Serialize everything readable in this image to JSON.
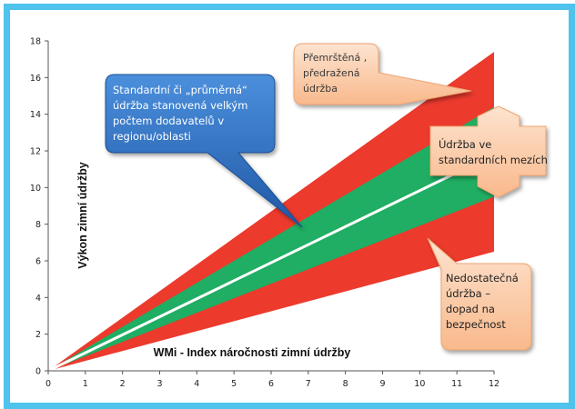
{
  "chart_data": {
    "type": "area",
    "xlabel": "WMi - Index náročnosti zimní údržby",
    "ylabel": "Výkon zimní údržby",
    "xlim": [
      0,
      12
    ],
    "ylim": [
      0,
      18
    ],
    "x_ticks": [
      "0",
      "1",
      "2",
      "3",
      "4",
      "5",
      "6",
      "7",
      "8",
      "9",
      "10",
      "11",
      "12"
    ],
    "y_ticks": [
      "0",
      "2",
      "4",
      "6",
      "8",
      "10",
      "12",
      "14",
      "16",
      "18"
    ],
    "grid": false,
    "bands": [
      {
        "role": "outer",
        "color": "#ec3a2d",
        "lower": [
          [
            0,
            0
          ],
          [
            12,
            6.5
          ]
        ],
        "upper": [
          [
            0,
            0
          ],
          [
            12,
            17.4
          ]
        ]
      },
      {
        "role": "standard",
        "color": "#1fae63",
        "lower": [
          [
            0,
            0
          ],
          [
            12,
            9.5
          ]
        ],
        "upper": [
          [
            0,
            0
          ],
          [
            12,
            14.4
          ]
        ]
      }
    ],
    "series": [
      {
        "role": "average",
        "color": "#ffffff",
        "x": [
          0,
          12
        ],
        "y": [
          0,
          11.8
        ]
      }
    ],
    "annotations": [
      {
        "text": "Standardní či „průměrná“ údržba stanovená  velkým počtem dodavatelů v regionu/oblasti",
        "style": "blue-callout"
      },
      {
        "text": "Přemrštěná , předražená údržba",
        "style": "orange-callout"
      },
      {
        "text": "Údržba ve standardních mezích",
        "style": "orange-double-arrow"
      },
      {
        "text": "Nedostatečná údržba – dopad na bezpečnost",
        "style": "orange-callout"
      }
    ],
    "colors": {
      "frame": "#4fc3ec",
      "red_zone": "#ec3a2d",
      "green_zone": "#1fae63",
      "average_line": "#ffffff",
      "blue_callout": "#2e6fbd",
      "orange_callout": "#fbc8a4",
      "orange_border": "#f0a070"
    }
  },
  "callouts": {
    "blue_lines": [
      "Standardní či „průměrná“",
      "údržba stanovená  velkým",
      "počtem dodavatelů v",
      "regionu/oblasti"
    ],
    "top_right_lines": [
      "Přemrštěná ,",
      "předražená",
      "údržba"
    ],
    "middle_right_lines": [
      "Údržba ve",
      "standardních mezích"
    ],
    "bottom_right_lines": [
      "Nedostatečná",
      "údržba –",
      "dopad na",
      "bezpečnost"
    ]
  }
}
